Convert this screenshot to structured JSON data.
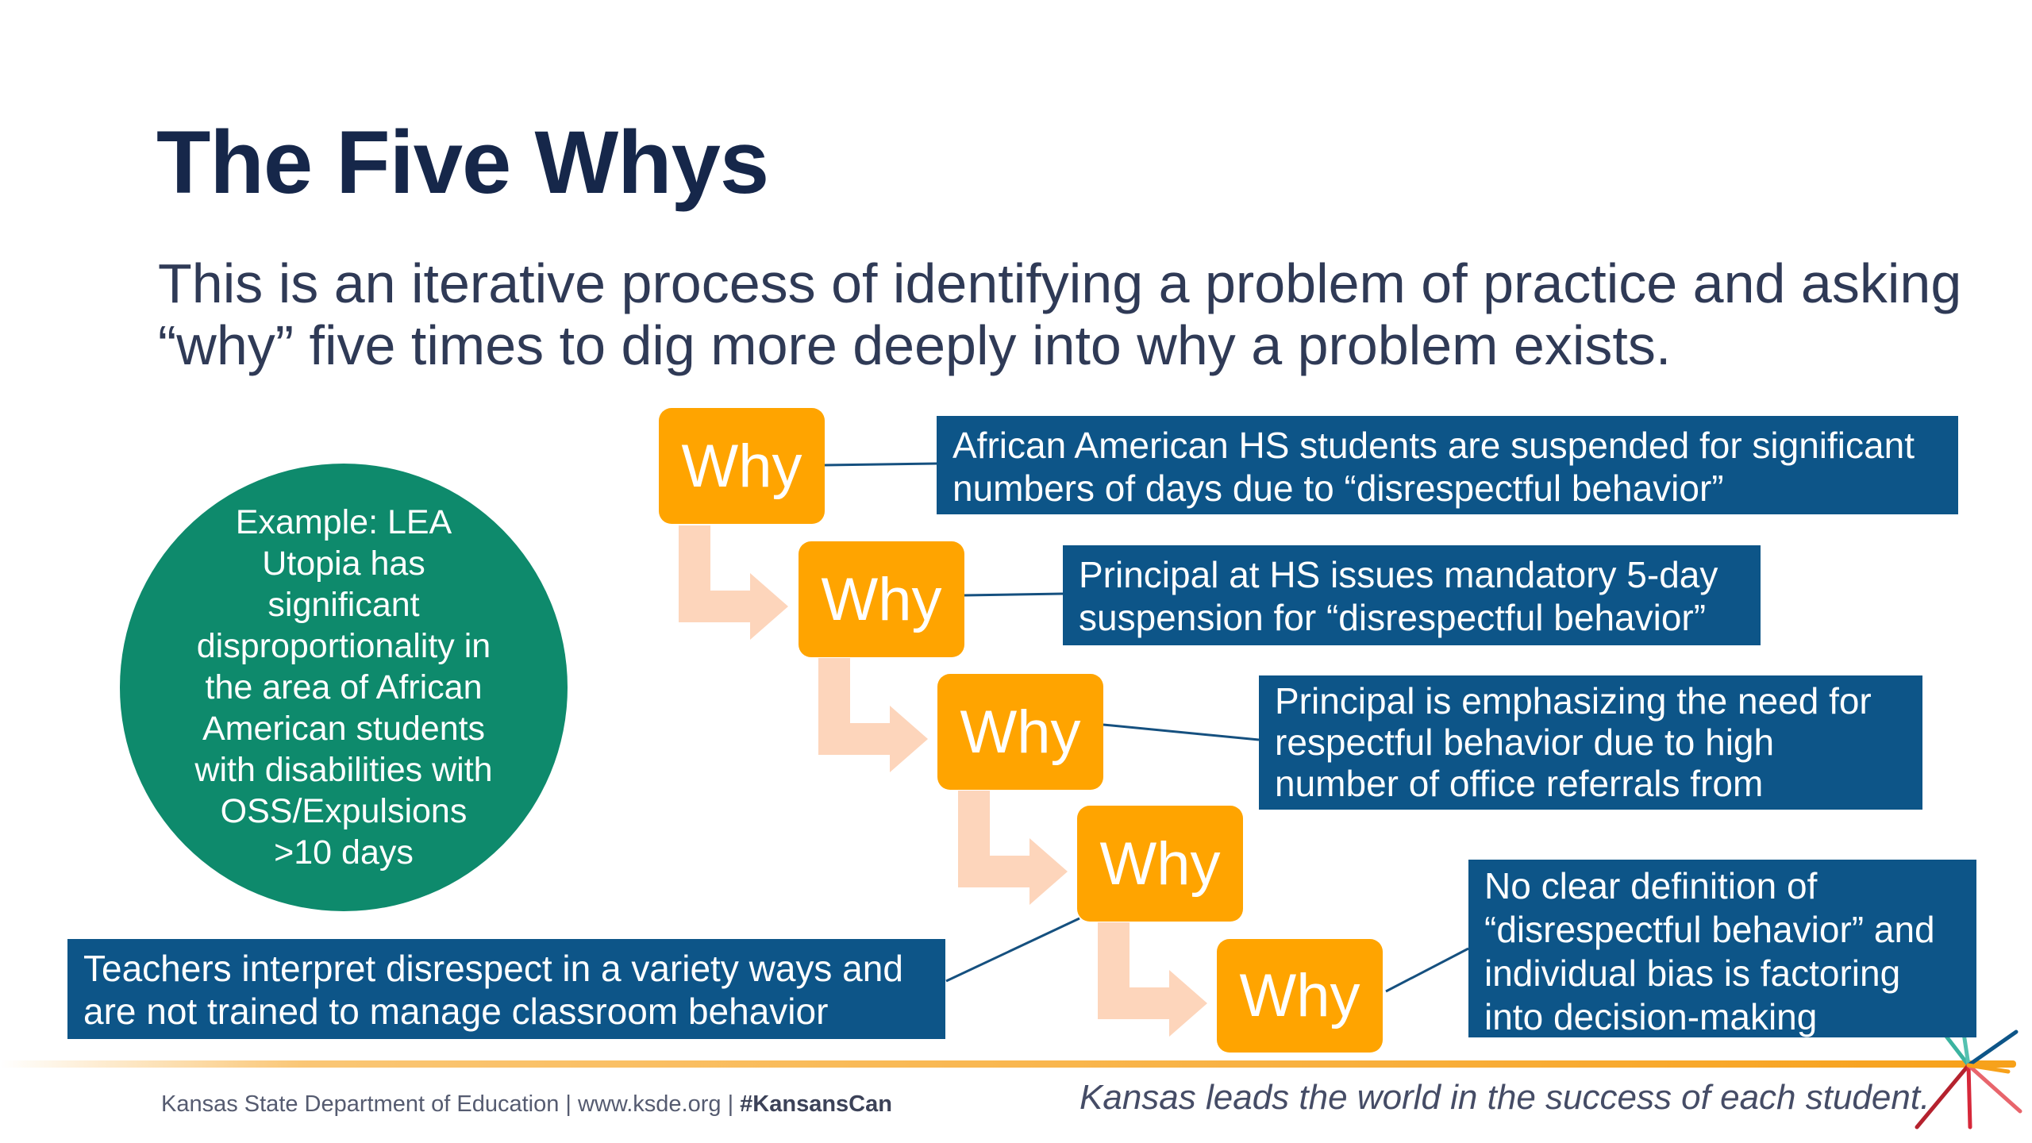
{
  "slide": {
    "title": "The Five Whys",
    "subtitle": "This is an iterative process of identifying a problem of practice and asking “why” five times to dig more deeply into why a problem exists.",
    "example": "Example: LEA Utopia has significant disproportionality in the area of African American students with disabilities with OSS/Expulsions >10 days",
    "why_label": "Why",
    "whys": [
      "African American HS students are suspended for significant numbers of days due to “disrespectful behavior”",
      "Principal at HS issues mandatory 5-day suspension for “disrespectful behavior”",
      "Principal is emphasizing the need for respectful behavior due to high number of office referrals from teachers",
      "Teachers interpret disrespect in a variety ways and are not trained to manage classroom behavior",
      "No clear definition of “disrespectful behavior” and individual bias is factoring into decision-making"
    ]
  },
  "footer": {
    "org": "Kansas State Department of Education | www.ksde.org | ",
    "hashtag": "#KansansCan",
    "tagline": "Kansas leads the world in the success of each student."
  },
  "colors": {
    "title": "#16274a",
    "why_box": "#ffa400",
    "answer_box": "#0d5588",
    "example_circle": "#0e8a6c",
    "arrow": "#fdd5bb",
    "footer_line": "#f7a11a"
  }
}
